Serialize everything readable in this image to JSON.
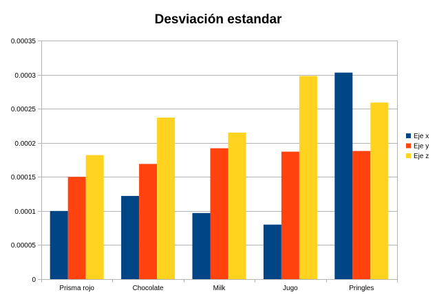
{
  "chart_data": {
    "type": "bar",
    "title": "Desviación estandar",
    "xlabel": "",
    "ylabel": "",
    "categories": [
      "Prisma rojo",
      "Chocolate",
      "Milk",
      "Jugo",
      "Pringles"
    ],
    "series": [
      {
        "name": "Eje x",
        "color": "#004586",
        "values": [
          0.0001,
          0.000122,
          9.7e-05,
          8e-05,
          0.000303
        ]
      },
      {
        "name": "Eje y",
        "color": "#ff420e",
        "values": [
          0.00015,
          0.000169,
          0.000192,
          0.000187,
          0.000188
        ]
      },
      {
        "name": "Eje z",
        "color": "#ffd320",
        "values": [
          0.000182,
          0.000237,
          0.000215,
          0.000298,
          0.000259
        ]
      }
    ],
    "ylim": [
      0,
      0.00035
    ],
    "yticks": [
      "0",
      "0.00005",
      "0.0001",
      "0.00015",
      "0.0002",
      "0.00025",
      "0.0003",
      "0.00035"
    ],
    "grid": true,
    "legend_position": "right"
  }
}
